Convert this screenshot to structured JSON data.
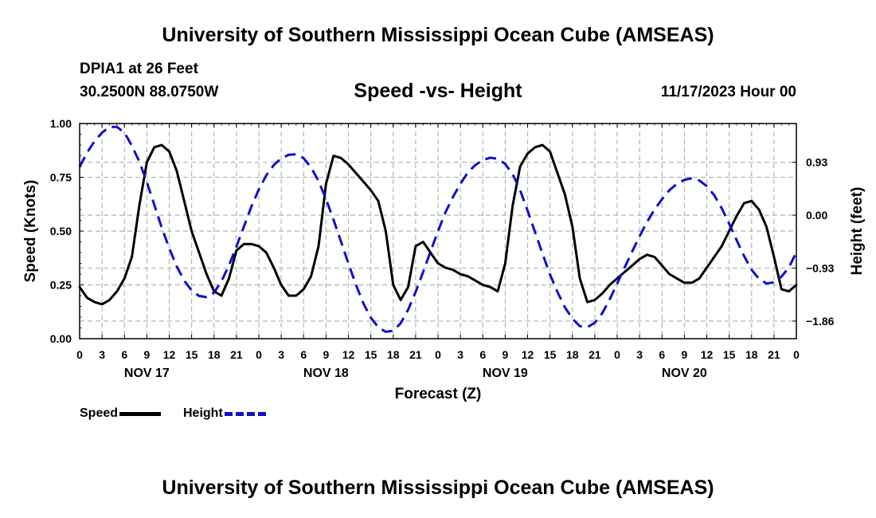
{
  "header": {
    "title": "University of Southern Mississippi Ocean Cube (AMSEAS)",
    "station": "DPIA1 at 26 Feet",
    "coordinates": "30.2500N  88.0750W",
    "chart_title": "Speed -vs- Height",
    "datetime": "11/17/2023 Hour 00"
  },
  "footer": {
    "title": "University of Southern Mississippi Ocean Cube (AMSEAS)"
  },
  "legend": {
    "speed_label": "Speed",
    "height_label": "Height"
  },
  "colors": {
    "speed": "#000000",
    "height": "#1010c8",
    "grid": "#b4b4b4"
  },
  "chart_data": {
    "type": "line",
    "title": "Speed -vs- Height",
    "xlabel": "Forecast (Z)",
    "ylabel": "Speed (Knots)",
    "y2label": "Height (feet)",
    "x_hours_range": [
      0,
      96
    ],
    "x_tick_step_hours": 3,
    "x_tick_labels": [
      "0",
      "3",
      "6",
      "9",
      "12",
      "15",
      "18",
      "21",
      "0",
      "3",
      "6",
      "9",
      "12",
      "15",
      "18",
      "21",
      "0",
      "3",
      "6",
      "9",
      "12",
      "15",
      "18",
      "21",
      "0",
      "3",
      "6",
      "9",
      "12",
      "15",
      "18",
      "21",
      "0"
    ],
    "day_labels": [
      {
        "label": "NOV 17",
        "hour": 9
      },
      {
        "label": "NOV 18",
        "hour": 33
      },
      {
        "label": "NOV 19",
        "hour": 57
      },
      {
        "label": "NOV 20",
        "hour": 81
      }
    ],
    "ylim": [
      0,
      1
    ],
    "y_ticks": [
      0,
      0.25,
      0.5,
      0.75,
      1
    ],
    "y_tick_labels": [
      "0.00",
      "0.25",
      "0.50",
      "0.75",
      "1.00"
    ],
    "y2lim": [
      -2.17,
      1.61
    ],
    "y2_ticks": [
      0.93,
      0,
      -0.93,
      -1.86
    ],
    "y2_tick_labels": [
      "0.93",
      "0.00",
      "−0.93",
      "−1.86"
    ],
    "grid": true,
    "legend_position": "bottom-left",
    "series": [
      {
        "name": "Speed",
        "axis": "left",
        "style": "solid",
        "x": [
          0,
          1,
          2,
          3,
          4,
          5,
          6,
          7,
          8,
          9,
          10,
          11,
          12,
          13,
          14,
          15,
          16,
          17,
          18,
          19,
          20,
          21,
          22,
          23,
          24,
          25,
          26,
          27,
          28,
          29,
          30,
          31,
          32,
          33,
          34,
          35,
          36,
          37,
          38,
          39,
          40,
          41,
          42,
          43,
          44,
          45,
          46,
          47,
          48,
          49,
          50,
          51,
          52,
          53,
          54,
          55,
          56,
          57,
          58,
          59,
          60,
          61,
          62,
          63,
          64,
          65,
          66,
          67,
          68,
          69,
          70,
          71,
          72,
          73,
          74,
          75,
          76,
          77,
          78,
          79,
          80,
          81,
          82,
          83,
          84,
          85,
          86,
          87,
          88,
          89,
          90,
          91,
          92,
          93,
          94,
          95,
          96
        ],
        "values": [
          0.24,
          0.19,
          0.17,
          0.16,
          0.18,
          0.22,
          0.28,
          0.38,
          0.62,
          0.82,
          0.89,
          0.9,
          0.87,
          0.78,
          0.64,
          0.5,
          0.4,
          0.3,
          0.22,
          0.2,
          0.28,
          0.41,
          0.44,
          0.44,
          0.43,
          0.4,
          0.33,
          0.25,
          0.2,
          0.2,
          0.23,
          0.29,
          0.43,
          0.72,
          0.85,
          0.84,
          0.81,
          0.77,
          0.73,
          0.69,
          0.64,
          0.5,
          0.25,
          0.18,
          0.24,
          0.43,
          0.45,
          0.4,
          0.35,
          0.33,
          0.32,
          0.3,
          0.29,
          0.27,
          0.25,
          0.24,
          0.22,
          0.35,
          0.62,
          0.8,
          0.86,
          0.89,
          0.9,
          0.87,
          0.77,
          0.67,
          0.52,
          0.28,
          0.17,
          0.18,
          0.21,
          0.25,
          0.28,
          0.31,
          0.34,
          0.37,
          0.39,
          0.38,
          0.34,
          0.3,
          0.28,
          0.26,
          0.26,
          0.28,
          0.33,
          0.38,
          0.43,
          0.5,
          0.57,
          0.63,
          0.64,
          0.6,
          0.52,
          0.38,
          0.23,
          0.22,
          0.25
        ]
      },
      {
        "name": "Height",
        "axis": "right",
        "style": "dashed",
        "x": [
          0,
          1,
          2,
          3,
          4,
          5,
          6,
          7,
          8,
          9,
          10,
          11,
          12,
          13,
          14,
          15,
          16,
          17,
          18,
          19,
          20,
          21,
          22,
          23,
          24,
          25,
          26,
          27,
          28,
          29,
          30,
          31,
          32,
          33,
          34,
          35,
          36,
          37,
          38,
          39,
          40,
          41,
          42,
          43,
          44,
          45,
          46,
          47,
          48,
          49,
          50,
          51,
          52,
          53,
          54,
          55,
          56,
          57,
          58,
          59,
          60,
          61,
          62,
          63,
          64,
          65,
          66,
          67,
          68,
          69,
          70,
          71,
          72,
          73,
          74,
          75,
          76,
          77,
          78,
          79,
          80,
          81,
          82,
          83,
          84,
          85,
          86,
          87,
          88,
          89,
          90,
          91,
          92,
          93,
          94,
          95,
          96
        ],
        "values": [
          0.85,
          1.1,
          1.3,
          1.45,
          1.55,
          1.55,
          1.45,
          1.22,
          0.94,
          0.58,
          0.18,
          -0.22,
          -0.58,
          -0.9,
          -1.15,
          -1.32,
          -1.42,
          -1.44,
          -1.36,
          -1.16,
          -0.88,
          -0.55,
          -0.2,
          0.15,
          0.45,
          0.7,
          0.88,
          1.0,
          1.06,
          1.07,
          1.0,
          0.84,
          0.6,
          0.28,
          -0.08,
          -0.46,
          -0.85,
          -1.22,
          -1.55,
          -1.8,
          -1.97,
          -2.05,
          -2.03,
          -1.9,
          -1.66,
          -1.35,
          -1.0,
          -0.64,
          -0.28,
          0.05,
          0.32,
          0.55,
          0.75,
          0.88,
          0.97,
          1.01,
          0.99,
          0.9,
          0.72,
          0.44,
          0.08,
          -0.3,
          -0.68,
          -1.04,
          -1.35,
          -1.62,
          -1.82,
          -1.95,
          -1.97,
          -1.89,
          -1.72,
          -1.48,
          -1.2,
          -0.92,
          -0.64,
          -0.37,
          -0.12,
          0.1,
          0.28,
          0.44,
          0.55,
          0.62,
          0.65,
          0.61,
          0.51,
          0.35,
          0.12,
          -0.15,
          -0.44,
          -0.72,
          -0.96,
          -1.12,
          -1.2,
          -1.18,
          -1.08,
          -0.92,
          -0.65
        ]
      }
    ]
  }
}
